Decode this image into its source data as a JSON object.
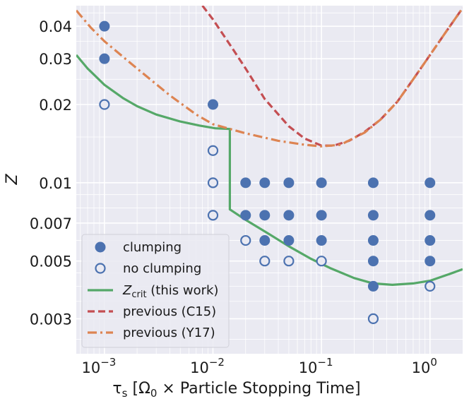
{
  "chart_data": {
    "type": "scatter",
    "x_scale": "log",
    "y_scale": "log",
    "xlim": [
      0.00055,
      2.0
    ],
    "ylim": [
      0.0022,
      0.048
    ],
    "grid": true,
    "legend_position": "lower-left",
    "xlabel": {
      "base": "τ",
      "sub": "s",
      "mid": " [Ω",
      "sub2": "0",
      "tail": " × Particle Stopping Time]"
    },
    "ylabel": "Z",
    "x_ticks": [
      {
        "value": 0.001,
        "label": "10",
        "exp": "−3"
      },
      {
        "value": 0.01,
        "label": "10",
        "exp": "−2"
      },
      {
        "value": 0.1,
        "label": "10",
        "exp": "−1"
      },
      {
        "value": 1,
        "label": "10",
        "exp": "0"
      }
    ],
    "y_ticks": [
      {
        "value": 0.04,
        "label": "0.04"
      },
      {
        "value": 0.03,
        "label": "0.03"
      },
      {
        "value": 0.02,
        "label": "0.02"
      },
      {
        "value": 0.01,
        "label": "0.01"
      },
      {
        "value": 0.007,
        "label": "0.007"
      },
      {
        "value": 0.005,
        "label": "0.005"
      },
      {
        "value": 0.003,
        "label": "0.003"
      }
    ],
    "series": [
      {
        "name": "clumping",
        "kind": "scatter-filled",
        "color": "#4c72b0",
        "points": [
          [
            0.001,
            0.04
          ],
          [
            0.001,
            0.03
          ],
          [
            0.01,
            0.02
          ],
          [
            0.02,
            0.01
          ],
          [
            0.03,
            0.01
          ],
          [
            0.05,
            0.01
          ],
          [
            0.1,
            0.01
          ],
          [
            0.3,
            0.01
          ],
          [
            1,
            0.01
          ],
          [
            0.02,
            0.0075
          ],
          [
            0.03,
            0.0075
          ],
          [
            0.05,
            0.0075
          ],
          [
            0.1,
            0.0075
          ],
          [
            0.3,
            0.0075
          ],
          [
            1,
            0.0075
          ],
          [
            0.03,
            0.006
          ],
          [
            0.05,
            0.006
          ],
          [
            0.1,
            0.006
          ],
          [
            0.3,
            0.006
          ],
          [
            1,
            0.006
          ],
          [
            0.3,
            0.005
          ],
          [
            1,
            0.005
          ],
          [
            0.3,
            0.004
          ]
        ]
      },
      {
        "name": "no clumping",
        "kind": "scatter-open",
        "color": "#4c72b0",
        "points": [
          [
            0.001,
            0.02
          ],
          [
            0.01,
            0.0133
          ],
          [
            0.01,
            0.01
          ],
          [
            0.01,
            0.0075
          ],
          [
            0.02,
            0.006
          ],
          [
            0.03,
            0.005
          ],
          [
            0.05,
            0.005
          ],
          [
            0.1,
            0.005
          ],
          [
            1,
            0.004
          ],
          [
            0.3,
            0.003
          ]
        ]
      },
      {
        "name_base": "Z",
        "name_sub": "crit",
        "name_tail": " (this work)",
        "kind": "line-solid",
        "color": "#55a868",
        "points": [
          [
            0.00055,
            0.031
          ],
          [
            0.0007,
            0.0275
          ],
          [
            0.001,
            0.0238
          ],
          [
            0.0015,
            0.0211
          ],
          [
            0.002,
            0.0197
          ],
          [
            0.003,
            0.0183
          ],
          [
            0.005,
            0.0172
          ],
          [
            0.0075,
            0.0166
          ],
          [
            0.0105,
            0.0162
          ],
          [
            0.0143,
            0.0161
          ],
          [
            0.0143,
            0.0079
          ],
          [
            0.02,
            0.0072
          ],
          [
            0.03,
            0.0065
          ],
          [
            0.05,
            0.0057
          ],
          [
            0.08,
            0.0051
          ],
          [
            0.12,
            0.0047
          ],
          [
            0.2,
            0.0043
          ],
          [
            0.3,
            0.0041
          ],
          [
            0.45,
            0.00405
          ],
          [
            0.7,
            0.0041
          ],
          [
            1,
            0.0042
          ],
          [
            1.5,
            0.00445
          ],
          [
            2,
            0.00465
          ]
        ]
      },
      {
        "name": "previous (C15)",
        "kind": "line-dashed",
        "color": "#c44e52",
        "points": [
          [
            0.008,
            0.048
          ],
          [
            0.01,
            0.0425
          ],
          [
            0.015,
            0.033
          ],
          [
            0.02,
            0.0275
          ],
          [
            0.03,
            0.021
          ],
          [
            0.05,
            0.0165
          ],
          [
            0.07,
            0.0148
          ],
          [
            0.1,
            0.0139
          ],
          [
            0.13,
            0.0139
          ],
          [
            0.18,
            0.0145
          ],
          [
            0.25,
            0.0157
          ],
          [
            0.35,
            0.0175
          ],
          [
            0.5,
            0.0205
          ],
          [
            0.7,
            0.025
          ],
          [
            1,
            0.031
          ],
          [
            1.4,
            0.038
          ],
          [
            2,
            0.047
          ]
        ]
      },
      {
        "name": "previous (Y17)",
        "kind": "line-dashdot",
        "color": "#dd8452",
        "points": [
          [
            0.00055,
            0.046
          ],
          [
            0.00075,
            0.0395
          ],
          [
            0.001,
            0.035
          ],
          [
            0.002,
            0.0275
          ],
          [
            0.004,
            0.0217
          ],
          [
            0.007,
            0.0183
          ],
          [
            0.01,
            0.0168
          ],
          [
            0.02,
            0.0155
          ],
          [
            0.04,
            0.0145
          ],
          [
            0.07,
            0.014
          ],
          [
            0.1,
            0.0138
          ],
          [
            0.15,
            0.014
          ],
          [
            0.25,
            0.0156
          ],
          [
            0.35,
            0.0175
          ],
          [
            0.5,
            0.0205
          ],
          [
            0.7,
            0.025
          ],
          [
            1,
            0.031
          ],
          [
            1.4,
            0.038
          ],
          [
            2,
            0.047
          ]
        ]
      }
    ]
  }
}
